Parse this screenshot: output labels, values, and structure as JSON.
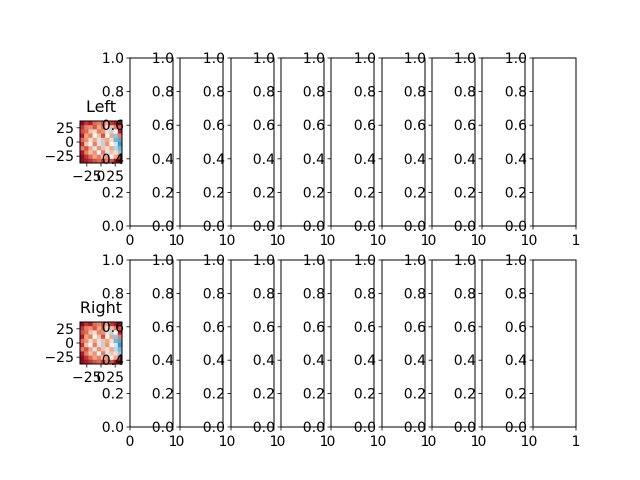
{
  "chart_data": [
    {
      "type": "heatmap",
      "row": "top",
      "title": "Left",
      "x_ticks": [
        "−25",
        "0",
        "25"
      ],
      "y_ticks": [
        "25",
        "0",
        "−25"
      ],
      "xlim": [
        -37,
        37
      ],
      "ylim": [
        -37,
        37
      ],
      "colormap": "RdBu_r",
      "grid_rows": 10,
      "grid_cols": 10,
      "values": [
        [
          0.95,
          0.85,
          0.9,
          0.75,
          0.7,
          0.8,
          0.6,
          0.85,
          0.9,
          0.95
        ],
        [
          0.85,
          0.7,
          0.65,
          0.8,
          0.6,
          0.75,
          0.4,
          0.55,
          0.7,
          0.8
        ],
        [
          0.8,
          0.75,
          0.55,
          0.5,
          0.7,
          0.65,
          0.5,
          0.35,
          0.45,
          0.9
        ],
        [
          0.9,
          0.6,
          0.7,
          0.45,
          0.55,
          0.8,
          0.45,
          0.6,
          0.3,
          0.7
        ],
        [
          0.75,
          0.65,
          0.5,
          0.6,
          0.4,
          0.55,
          0.6,
          0.5,
          0.25,
          0.2
        ],
        [
          0.85,
          0.55,
          0.45,
          0.7,
          0.5,
          0.35,
          0.65,
          0.45,
          0.4,
          0.15
        ],
        [
          0.7,
          0.8,
          0.6,
          0.4,
          0.65,
          0.55,
          0.5,
          0.6,
          0.35,
          0.25
        ],
        [
          0.9,
          0.7,
          0.55,
          0.65,
          0.45,
          0.7,
          0.4,
          0.55,
          0.5,
          0.3
        ],
        [
          0.95,
          0.85,
          0.75,
          0.6,
          0.7,
          0.55,
          0.65,
          0.45,
          0.6,
          0.85
        ],
        [
          0.95,
          0.9,
          0.85,
          0.8,
          0.75,
          0.85,
          0.7,
          0.8,
          0.9,
          0.95
        ]
      ]
    },
    {
      "type": "heatmap",
      "row": "bottom",
      "title": "Right",
      "x_ticks": [
        "−25",
        "0",
        "25"
      ],
      "y_ticks": [
        "25",
        "0",
        "−25"
      ],
      "xlim": [
        -37,
        37
      ],
      "ylim": [
        -37,
        37
      ],
      "colormap": "RdBu_r",
      "grid_rows": 10,
      "grid_cols": 10,
      "values": [
        [
          0.95,
          0.85,
          0.9,
          0.75,
          0.7,
          0.8,
          0.6,
          0.85,
          0.9,
          0.95
        ],
        [
          0.85,
          0.7,
          0.65,
          0.8,
          0.6,
          0.75,
          0.4,
          0.55,
          0.7,
          0.8
        ],
        [
          0.8,
          0.75,
          0.55,
          0.5,
          0.7,
          0.65,
          0.5,
          0.35,
          0.45,
          0.9
        ],
        [
          0.9,
          0.6,
          0.7,
          0.45,
          0.55,
          0.8,
          0.45,
          0.6,
          0.3,
          0.7
        ],
        [
          0.75,
          0.65,
          0.5,
          0.6,
          0.4,
          0.55,
          0.6,
          0.5,
          0.25,
          0.2
        ],
        [
          0.85,
          0.55,
          0.45,
          0.7,
          0.5,
          0.35,
          0.65,
          0.45,
          0.4,
          0.15
        ],
        [
          0.7,
          0.8,
          0.6,
          0.4,
          0.65,
          0.55,
          0.5,
          0.6,
          0.35,
          0.25
        ],
        [
          0.9,
          0.7,
          0.55,
          0.65,
          0.45,
          0.7,
          0.4,
          0.55,
          0.5,
          0.3
        ],
        [
          0.95,
          0.85,
          0.75,
          0.6,
          0.7,
          0.55,
          0.65,
          0.45,
          0.6,
          0.85
        ],
        [
          0.95,
          0.9,
          0.85,
          0.8,
          0.75,
          0.85,
          0.7,
          0.8,
          0.9,
          0.95
        ]
      ]
    },
    {
      "type": "line",
      "row": "top",
      "series": [],
      "count": 8,
      "xlim": [
        0,
        1
      ],
      "ylim": [
        0,
        1
      ],
      "y_ticks": [
        "0.0",
        "0.2",
        "0.4",
        "0.6",
        "0.8",
        "1.0"
      ],
      "x_ticks": [
        "0",
        "1"
      ]
    },
    {
      "type": "line",
      "row": "bottom",
      "series": [],
      "count": 8,
      "xlim": [
        0,
        1
      ],
      "ylim": [
        0,
        1
      ],
      "y_ticks": [
        "0.0",
        "0.2",
        "0.4",
        "0.6",
        "0.8",
        "1.0"
      ],
      "x_ticks": [
        "0",
        "1"
      ]
    }
  ]
}
